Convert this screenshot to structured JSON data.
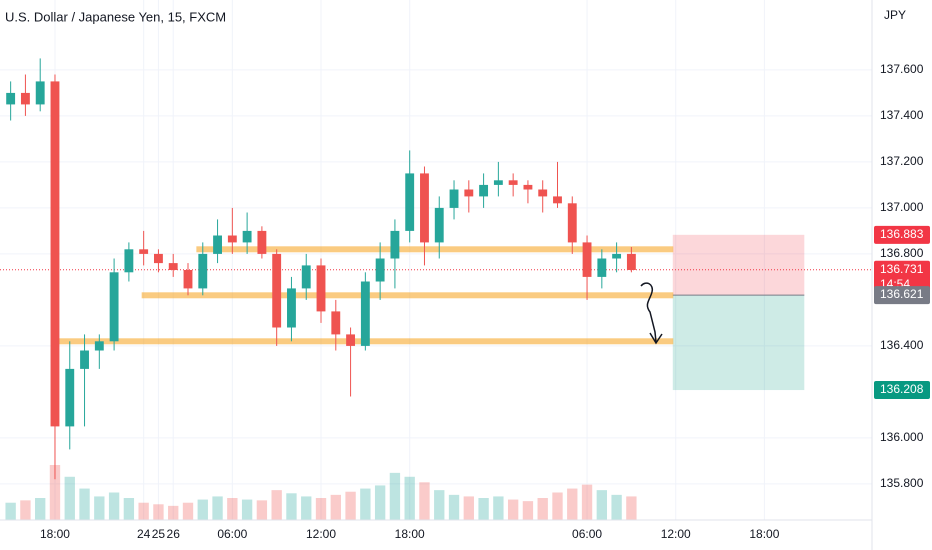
{
  "chart_data": {
    "type": "candlestick",
    "title": "U.S. Dollar / Japanese Yen, 15, FXCM",
    "currency": "JPY",
    "x": [
      15,
      16,
      17,
      18,
      19,
      20,
      21,
      22,
      23,
      24,
      25,
      26,
      27,
      28,
      29,
      30,
      31,
      32,
      33,
      34,
      35,
      36,
      37,
      38,
      39,
      40,
      41,
      42,
      43,
      44,
      45,
      46,
      47,
      48,
      49,
      50,
      51,
      52,
      53,
      54,
      55,
      56,
      57
    ],
    "open": [
      137.45,
      137.5,
      137.45,
      137.55,
      136.05,
      136.3,
      136.38,
      136.42,
      136.72,
      136.82,
      136.8,
      136.76,
      136.73,
      136.65,
      136.8,
      136.88,
      136.85,
      136.9,
      136.8,
      136.48,
      136.65,
      136.75,
      136.55,
      136.45,
      136.4,
      136.68,
      136.78,
      136.9,
      137.15,
      136.85,
      137.0,
      137.08,
      137.05,
      137.1,
      137.12,
      137.1,
      137.08,
      137.05,
      137.02,
      136.85,
      136.7,
      136.78,
      136.8
    ],
    "high": [
      137.55,
      137.58,
      137.65,
      137.58,
      136.42,
      136.45,
      136.45,
      136.78,
      136.85,
      136.9,
      136.82,
      136.8,
      136.76,
      136.85,
      136.95,
      137.0,
      136.98,
      136.92,
      136.82,
      136.7,
      136.8,
      136.78,
      136.6,
      136.48,
      136.72,
      136.85,
      136.95,
      137.25,
      137.18,
      137.05,
      137.12,
      137.12,
      137.15,
      137.2,
      137.15,
      137.12,
      137.12,
      137.2,
      137.05,
      136.88,
      136.82,
      136.85,
      136.83
    ],
    "low": [
      137.38,
      137.4,
      137.42,
      135.82,
      135.95,
      136.05,
      136.3,
      136.38,
      136.68,
      136.75,
      136.72,
      136.7,
      136.62,
      136.62,
      136.76,
      136.8,
      136.8,
      136.78,
      136.4,
      136.42,
      136.6,
      136.5,
      136.38,
      136.18,
      136.38,
      136.6,
      136.65,
      136.85,
      136.75,
      136.78,
      136.95,
      136.98,
      137.0,
      137.05,
      137.05,
      137.02,
      136.98,
      137.0,
      136.8,
      136.6,
      136.65,
      136.72,
      136.72
    ],
    "close": [
      137.5,
      137.45,
      137.55,
      136.05,
      136.3,
      136.38,
      136.42,
      136.72,
      136.82,
      136.8,
      136.76,
      136.73,
      136.65,
      136.8,
      136.88,
      136.85,
      136.9,
      136.8,
      136.48,
      136.65,
      136.75,
      136.55,
      136.45,
      136.4,
      136.68,
      136.78,
      136.9,
      137.15,
      136.85,
      137.0,
      137.08,
      137.05,
      137.1,
      137.12,
      137.1,
      137.08,
      137.05,
      137.02,
      136.85,
      136.7,
      136.78,
      136.8,
      136.73
    ],
    "volume": [
      22,
      25,
      28,
      70,
      55,
      40,
      30,
      35,
      28,
      22,
      20,
      18,
      22,
      26,
      30,
      28,
      26,
      25,
      38,
      34,
      30,
      28,
      32,
      36,
      40,
      44,
      60,
      55,
      48,
      38,
      32,
      30,
      28,
      30,
      26,
      24,
      28,
      35,
      40,
      45,
      38,
      32,
      30
    ],
    "up_color": "#26a69a",
    "down_color": "#ef5350",
    "xlim": [
      14.28,
      73.28
    ],
    "ylim": [
      135.643,
      137.904
    ],
    "xticks": [
      {
        "value": 18,
        "label": "18:00"
      },
      24,
      {
        "value": 30,
        "label": "06:00"
      },
      {
        "value": 36,
        "label": "12:00"
      },
      {
        "value": 42,
        "label": "18:00"
      },
      25,
      {
        "value": 54,
        "label": "06:00"
      },
      {
        "value": 60,
        "label": "12:00"
      },
      {
        "value": 66,
        "label": "18:00"
      },
      26
    ],
    "yticks": [
      {
        "value": 135.8,
        "label": "135.800"
      },
      {
        "value": 136.0,
        "label": "136.000"
      },
      {
        "value": 136.4,
        "label": "136.400"
      },
      {
        "value": 136.8,
        "label": "136.800"
      },
      {
        "value": 137.0,
        "label": "137.000"
      },
      {
        "value": 137.2,
        "label": "137.200"
      },
      {
        "value": 137.4,
        "label": "137.400"
      },
      {
        "value": 137.6,
        "label": "137.600"
      }
    ],
    "grid": true,
    "hlines": [
      {
        "price": 136.82,
        "start": 27.6,
        "end": 59.8,
        "color": "#f7a21b"
      },
      {
        "price": 136.62,
        "start": 23.9,
        "end": 59.8,
        "color": "#f7a21b"
      },
      {
        "price": 136.42,
        "start": 18.3,
        "end": 59.8,
        "color": "#f7a21b"
      }
    ],
    "position": {
      "start": 59.8,
      "end": 68.7,
      "entry": 136.621,
      "stop": 136.883,
      "target": 136.208
    },
    "last_price": 136.731,
    "price_labels": [
      {
        "value": 136.883,
        "label": "136.883",
        "color": "#f23645"
      },
      {
        "value": 136.731,
        "label": "136.731",
        "color": "#f23645",
        "countdown": "14:54"
      },
      {
        "value": 136.621,
        "label": "136.621",
        "color": "#787b86"
      },
      {
        "value": 136.208,
        "label": "136.208",
        "color": "#089981"
      }
    ]
  }
}
